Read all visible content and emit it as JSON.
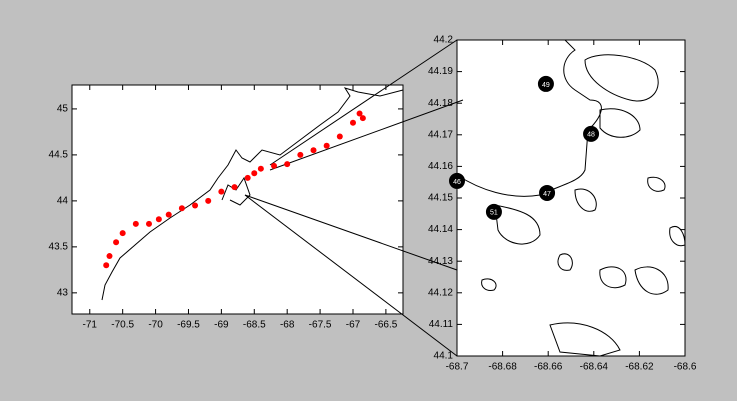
{
  "chart_data": [
    {
      "type": "scatter",
      "points": {
        "color": "#ff0000",
        "x": [
          -70.75,
          -70.7,
          -70.6,
          -70.5,
          -70.3,
          -70.1,
          -69.95,
          -69.8,
          -69.6,
          -69.4,
          -69.2,
          -69.0,
          -68.8,
          -68.6,
          -68.5,
          -68.4,
          -68.2,
          -68.0,
          -67.8,
          -67.6,
          -67.4,
          -67.2,
          -67.0,
          -66.9,
          -66.85
        ],
        "y": [
          43.3,
          43.4,
          43.55,
          43.65,
          43.75,
          43.75,
          43.8,
          43.85,
          43.92,
          43.95,
          44.0,
          44.1,
          44.15,
          44.25,
          44.3,
          44.35,
          44.38,
          44.4,
          44.5,
          44.55,
          44.6,
          44.7,
          44.85,
          44.95,
          44.9
        ]
      },
      "xlim": [
        -71.27,
        -66.24
      ],
      "ylim": [
        42.77,
        45.26
      ],
      "xticks": [
        -71,
        -70.5,
        -70,
        -69.5,
        -69,
        -68.5,
        -68,
        -67.5,
        -67,
        -66.5
      ],
      "yticks": [
        43,
        43.5,
        44,
        44.5,
        45
      ]
    },
    {
      "type": "scatter",
      "points": {
        "color": "#000000",
        "x": [
          -68.7,
          -68.6605,
          -68.6412,
          -68.661,
          -68.6838
        ],
        "y": [
          44.1554,
          44.1516,
          44.1703,
          44.1861,
          44.1456
        ],
        "labels": [
          "46",
          "47",
          "48",
          "49",
          "51"
        ]
      },
      "xlim": [
        -68.7,
        -68.6
      ],
      "ylim": [
        44.1,
        44.2
      ],
      "xticks": [
        -68.7,
        -68.68,
        -68.66,
        -68.64,
        -68.62,
        -68.6
      ],
      "yticks": [
        44.1,
        44.11,
        44.12,
        44.13,
        44.14,
        44.15,
        44.16,
        44.17,
        44.18,
        44.19,
        44.2
      ]
    }
  ]
}
